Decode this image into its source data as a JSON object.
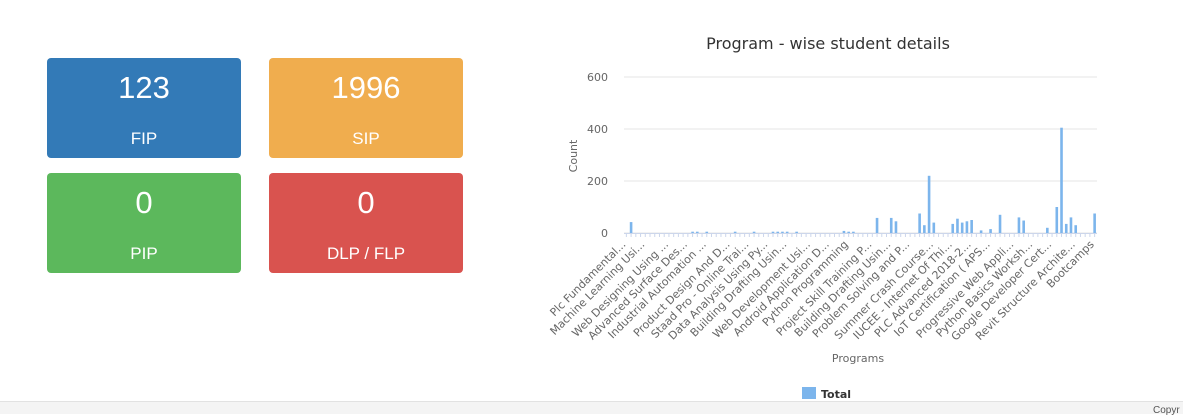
{
  "tiles": {
    "fip": {
      "value": "123",
      "label": "FIP",
      "color": "#337ab7"
    },
    "sip": {
      "value": "1996",
      "label": "SIP",
      "color": "#f0ad4e"
    },
    "pip": {
      "value": "0",
      "label": "PIP",
      "color": "#5cb85c"
    },
    "dlp": {
      "value": "0",
      "label": "DLP / FLP",
      "color": "#d9534f"
    }
  },
  "footer": {
    "text": "Copyr"
  },
  "chart_data": {
    "type": "bar",
    "title": "Program - wise student details",
    "xlabel": "Programs",
    "ylabel": "Count",
    "ylim": [
      0,
      600
    ],
    "yticks": [
      0,
      200,
      400,
      600
    ],
    "grid": true,
    "legend_position": "bottom",
    "bar_color": "#7cb5ec",
    "x_labels_shown": [
      "Plc Fundamental...",
      "Machine Learning Usi...",
      "Web Designing Using ...",
      "Advanced Surface Des...",
      "Industrial Automation ...",
      "Product Design And D...",
      "Staad Pro - Online Trai...",
      "Data Analysis Using Py...",
      "Building Drafting Usin...",
      "Web Development Usi...",
      "Android Application D...",
      "Python Programming",
      "Project Skill Training P...",
      "Building Drafting Usin...",
      "Problem Solving and P...",
      "Summer Crash Course...",
      "IUCEE - Internet Of Thi...",
      "PLC Advanced 2018-2...",
      "IoT Certification ( APS...",
      "Progressive Web Appli...",
      "Python Basics Worksh...",
      "Google Developer Cert...",
      "Revit Structure Archite...",
      "Bootcamps"
    ],
    "series": [
      {
        "name": "Total",
        "values": [
          0,
          42,
          0,
          0,
          0,
          0,
          0,
          0,
          0,
          0,
          0,
          0,
          0,
          0,
          5,
          5,
          0,
          5,
          0,
          0,
          0,
          0,
          0,
          5,
          0,
          0,
          0,
          5,
          0,
          0,
          0,
          5,
          5,
          5,
          5,
          0,
          5,
          0,
          0,
          0,
          0,
          0,
          0,
          0,
          0,
          0,
          8,
          5,
          5,
          0,
          0,
          0,
          0,
          58,
          0,
          0,
          58,
          45,
          0,
          0,
          0,
          0,
          75,
          30,
          220,
          40,
          0,
          0,
          0,
          35,
          55,
          40,
          45,
          50,
          0,
          10,
          0,
          15,
          0,
          70,
          0,
          0,
          0,
          60,
          48,
          0,
          0,
          0,
          0,
          20,
          0,
          100,
          405,
          35,
          60,
          30,
          0,
          0,
          0,
          75
        ]
      }
    ]
  }
}
